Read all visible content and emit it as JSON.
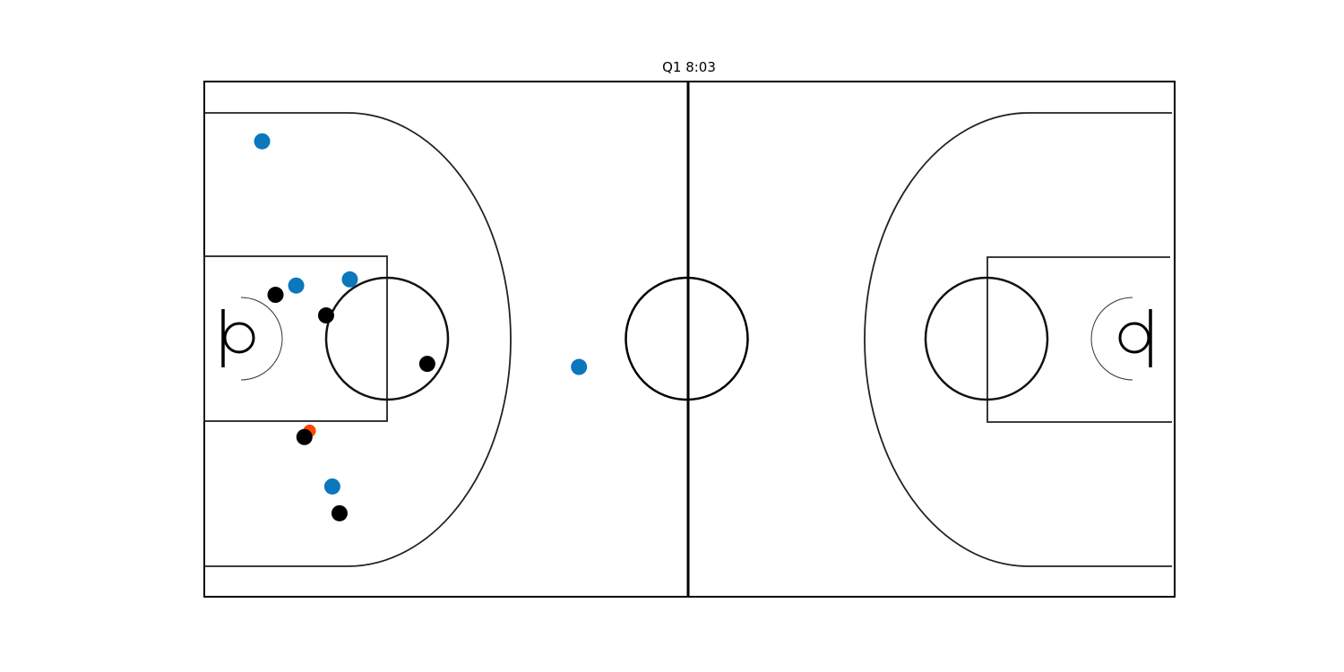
{
  "chart_data": {
    "type": "scatter",
    "title": "Q1 8:03",
    "xlabel": "",
    "ylabel": "",
    "xlim": [
      0,
      94
    ],
    "ylim": [
      0,
      50
    ],
    "grid": false,
    "legend": "none",
    "colors": {
      "team_blue": "#0b77bd",
      "team_black": "#000000",
      "ball": "#ff4500",
      "court_lines": "#1a1a1a"
    },
    "series": [
      {
        "marker": "team_blue",
        "points": [
          {
            "x": 5.6,
            "y": 44.2
          },
          {
            "x": 8.9,
            "y": 30.2
          },
          {
            "x": 14.1,
            "y": 30.8
          },
          {
            "x": 36.3,
            "y": 22.3
          },
          {
            "x": 12.4,
            "y": 10.7
          }
        ]
      },
      {
        "marker": "team_black",
        "points": [
          {
            "x": 6.9,
            "y": 29.3
          },
          {
            "x": 11.8,
            "y": 27.3
          },
          {
            "x": 21.6,
            "y": 22.6
          },
          {
            "x": 9.7,
            "y": 15.5
          },
          {
            "x": 13.1,
            "y": 8.1
          }
        ]
      },
      {
        "marker": "ball",
        "points": [
          {
            "x": 10.2,
            "y": 16.1
          }
        ]
      }
    ]
  }
}
